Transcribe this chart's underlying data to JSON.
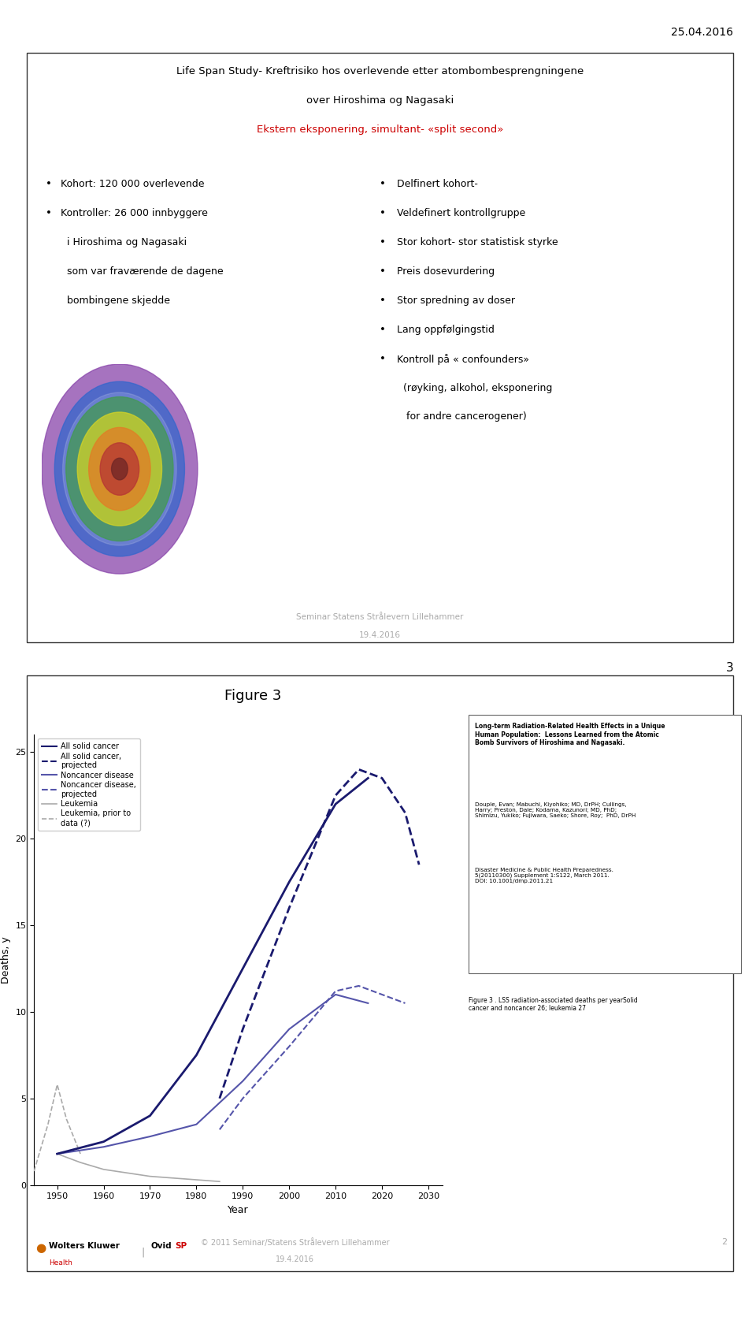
{
  "page_date": "25.04.2016",
  "page_number": "3",
  "slide1": {
    "border_color": "#333333",
    "title_line1": "Life Span Study- Kreftrisiko hos overlevende etter atombombesprengningene",
    "title_line2": "over Hiroshima og Nagasaki",
    "title_line3": "Ekstern eksponering, simultant- «split second»",
    "title_line3_color": "#cc0000",
    "footer_line1": "Seminar Statens Strålevern Lillehammer",
    "footer_line2": "19.4.2016"
  },
  "slide2": {
    "border_color": "#333333",
    "title": "Figure 3",
    "chart": {
      "xlabel": "Year",
      "ylabel": "Deaths, y",
      "xlim": [
        1945,
        2033
      ],
      "ylim": [
        0,
        26
      ],
      "xticks": [
        1950,
        1960,
        1970,
        1980,
        1990,
        2000,
        2010,
        2020,
        2030
      ],
      "yticks": [
        0,
        5,
        10,
        15,
        20,
        25
      ],
      "solid_cancer_x": [
        1950,
        1960,
        1970,
        1980,
        1990,
        2000,
        2010,
        2017
      ],
      "solid_cancer_y": [
        1.8,
        2.5,
        4.0,
        7.5,
        12.5,
        17.5,
        22.0,
        23.5
      ],
      "solid_cancer_proj_x": [
        1985,
        1990,
        2000,
        2010,
        2015,
        2020,
        2025,
        2028
      ],
      "solid_cancer_proj_y": [
        5.0,
        9.0,
        16.0,
        22.5,
        24.0,
        23.5,
        21.5,
        18.5
      ],
      "noncancer_x": [
        1950,
        1960,
        1970,
        1980,
        1990,
        2000,
        2010,
        2017
      ],
      "noncancer_y": [
        1.8,
        2.2,
        2.8,
        3.5,
        6.0,
        9.0,
        11.0,
        10.5
      ],
      "noncancer_proj_x": [
        1985,
        1990,
        2000,
        2010,
        2015,
        2020,
        2025
      ],
      "noncancer_proj_y": [
        3.2,
        5.0,
        8.0,
        11.2,
        11.5,
        11.0,
        10.5
      ],
      "leukemia_x": [
        1950,
        1955,
        1960,
        1965,
        1970,
        1975,
        1980,
        1985
      ],
      "leukemia_y": [
        1.8,
        1.3,
        0.9,
        0.7,
        0.5,
        0.4,
        0.3,
        0.2
      ],
      "leukemia_prior_x": [
        1945,
        1948,
        1950,
        1952,
        1955
      ],
      "leukemia_prior_y": [
        0.8,
        3.5,
        5.8,
        3.8,
        1.8
      ],
      "solid_cancer_color": "#1a1a6e",
      "noncancer_color": "#5555aa",
      "leukemia_color": "#aaaaaa"
    },
    "ref_box": {
      "title_bold": "Long-term Radiation-Related Health Effects in a Unique\nHuman Population:  Lessons Learned from the Atomic\nBomb Survivors of Hiroshima and Nagasaki.",
      "authors": "Douple, Evan; Mabuchi, Kiyohiko; MD, DrPH; Cullings,\nHarry; Preston, Dale; Kodama, Kazunori; MD, PhD;\nShimizu, Yukiko; Fujiwara, Saeko; Shore, Roy;  PhD, DrPH",
      "journal": "\nDisaster Medicine & Public Health Preparedness.\n5(20110300) Supplement 1:S122, March 2011.\nDOI: 10.1001/dmp.2011.21",
      "caption": "Figure 3 . LSS radiation-associated deaths per yearSolid\ncancer and noncancer 26; leukemia 27"
    },
    "footer_line1": "© 2011 Seminar/Statens Strålevern Lillehammer",
    "footer_line2": "19.4.2016",
    "footer_page": "2"
  }
}
